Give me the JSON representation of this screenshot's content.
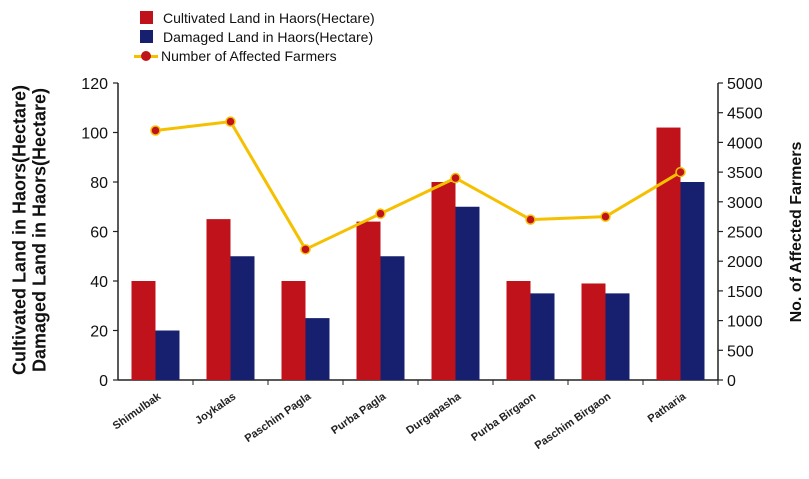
{
  "chart_data": {
    "type": "bar",
    "title": "",
    "xlabel": "",
    "ylabel_left": [
      "Cultivated Land in Haors(Hectare)",
      "Damaged Land in Haors(Hectare)"
    ],
    "ylabel_right": "No. of Affected Farmers",
    "categories": [
      "Shimulbak",
      "Joykalas",
      "Paschim Pagla",
      "Purba Pagla",
      "Durgapasha",
      "Purba Birgaon",
      "Paschim Birgaon",
      "Patharia"
    ],
    "series": [
      {
        "name": "Cultivated Land in Haors(Hectare)",
        "type": "bar",
        "axis": "left",
        "color": "#c0121a",
        "values": [
          40,
          65,
          40,
          64,
          80,
          40,
          39,
          102
        ]
      },
      {
        "name": "Damaged Land in Haors(Hectare)",
        "type": "bar",
        "axis": "left",
        "color": "#16206e",
        "values": [
          20,
          50,
          25,
          50,
          70,
          35,
          35,
          80
        ]
      },
      {
        "name": "Number of Affected Farmers",
        "type": "line",
        "axis": "right",
        "color": "#f5c000",
        "marker_color": "#c0121a",
        "values": [
          4200,
          4350,
          2200,
          2800,
          3400,
          2700,
          2750,
          3500
        ]
      }
    ],
    "y_left": {
      "min": 0,
      "max": 120,
      "ticks": [
        0,
        20,
        40,
        60,
        80,
        100,
        120
      ]
    },
    "y_right": {
      "min": 0,
      "max": 5000,
      "ticks": [
        0,
        500,
        1000,
        1500,
        2000,
        2500,
        3000,
        3500,
        4000,
        4500,
        5000
      ]
    },
    "grid": false,
    "legend_position": "top-left"
  }
}
